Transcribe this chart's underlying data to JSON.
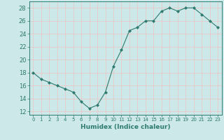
{
  "x": [
    0,
    1,
    2,
    3,
    4,
    5,
    6,
    7,
    8,
    9,
    10,
    11,
    12,
    13,
    14,
    15,
    16,
    17,
    18,
    19,
    20,
    21,
    22,
    23
  ],
  "y": [
    18,
    17,
    16.5,
    16,
    15.5,
    15,
    13.5,
    12.5,
    13,
    15,
    19,
    21.5,
    24.5,
    25,
    26,
    26,
    27.5,
    28,
    27.5,
    28,
    28,
    27,
    26,
    25
  ],
  "line_color": "#2d7a6e",
  "marker": "D",
  "marker_size": 2.0,
  "bg_color": "#cce8e8",
  "grid_color": "#e8c8c8",
  "tick_color": "#2d7a6e",
  "xlabel": "Humidex (Indice chaleur)",
  "xlim": [
    -0.5,
    23.5
  ],
  "ylim": [
    11.5,
    29.0
  ],
  "yticks": [
    12,
    14,
    16,
    18,
    20,
    22,
    24,
    26,
    28
  ],
  "xticks": [
    0,
    1,
    2,
    3,
    4,
    5,
    6,
    7,
    8,
    9,
    10,
    11,
    12,
    13,
    14,
    15,
    16,
    17,
    18,
    19,
    20,
    21,
    22,
    23
  ],
  "xlabel_fontsize": 6.5,
  "ytick_fontsize": 6,
  "xtick_fontsize": 5
}
